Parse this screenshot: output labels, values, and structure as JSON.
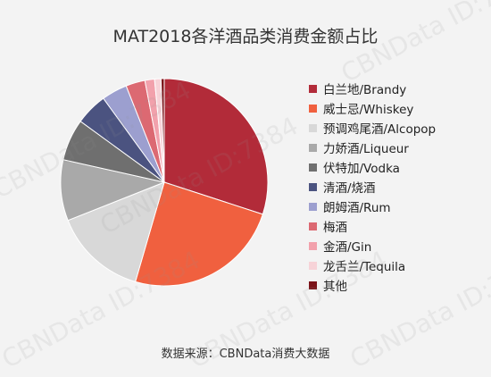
{
  "chart_data": {
    "type": "pie",
    "title": "MAT2018各洋酒品类消费金额占比",
    "source": "数据来源：CBNData消费大数据",
    "slices": [
      {
        "name": "白兰地/Brandy",
        "value": 30.0,
        "color": "#b22b39"
      },
      {
        "name": "威士忌/Whiskey",
        "value": 24.5,
        "color": "#f0603f"
      },
      {
        "name": "预调鸡尾酒/Alcopop",
        "value": 14.5,
        "color": "#d8d8d8"
      },
      {
        "name": "力娇酒/Liqueur",
        "value": 9.5,
        "color": "#a9a9a9"
      },
      {
        "name": "伏特加/Vodka",
        "value": 6.5,
        "color": "#6f6f6f"
      },
      {
        "name": "清酒/烧酒",
        "value": 5.0,
        "color": "#4b5380"
      },
      {
        "name": "朗姆酒/Rum",
        "value": 4.0,
        "color": "#9c9fcf"
      },
      {
        "name": "梅酒",
        "value": 3.0,
        "color": "#dc6972"
      },
      {
        "name": "金酒/Gin",
        "value": 1.5,
        "color": "#f2a1ac"
      },
      {
        "name": "龙舌兰/Tequila",
        "value": 1.0,
        "color": "#f7d3d8"
      },
      {
        "name": "其他",
        "value": 0.5,
        "color": "#7b1319"
      }
    ]
  },
  "watermark": "CBNData ID:7384"
}
